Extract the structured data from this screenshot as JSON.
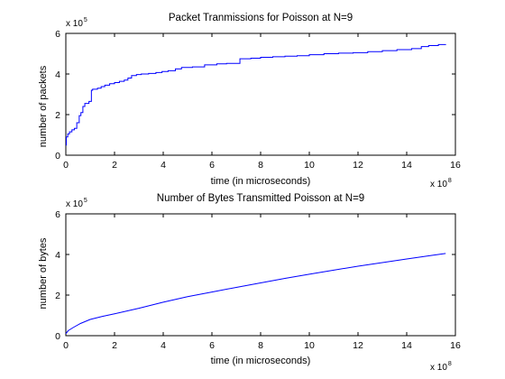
{
  "colors": {
    "line": "#0000ff",
    "axes": "#000000",
    "background": "#ffffff"
  },
  "chart_data": [
    {
      "type": "line",
      "title": "Packet Tranmissions for Poisson at N=9",
      "xlabel": "time (in microseconds)",
      "ylabel": "number of packets",
      "x_exponent": {
        "base": "x 10",
        "power": "8"
      },
      "y_exponent": {
        "base": "x 10",
        "power": "5"
      },
      "xlim": [
        0,
        16
      ],
      "ylim": [
        0,
        6
      ],
      "x_ticks": [
        "0",
        "2",
        "4",
        "6",
        "8",
        "10",
        "12",
        "14",
        "16"
      ],
      "y_ticks": [
        "0",
        "2",
        "4",
        "6"
      ],
      "grid": false,
      "step": true,
      "series": [
        {
          "x": [
            0,
            0.02,
            0.08,
            0.15,
            0.25,
            0.35,
            0.45,
            0.55,
            0.62,
            0.7,
            0.78,
            0.85,
            0.95,
            1.05,
            1.1,
            1.3,
            1.45,
            1.6,
            1.8,
            2.0,
            2.2,
            2.4,
            2.55,
            2.7,
            2.9,
            3.1,
            3.4,
            3.7,
            3.95,
            4.2,
            4.5,
            4.75,
            5.2,
            5.7,
            6.2,
            6.6,
            7.15,
            7.6,
            8.0,
            8.5,
            9.0,
            9.5,
            10.0,
            10.6,
            11.2,
            11.8,
            12.4,
            13.0,
            13.6,
            14.2,
            14.6,
            14.9,
            15.3,
            15.6
          ],
          "y": [
            0.5,
            0.9,
            1.05,
            1.15,
            1.25,
            1.32,
            1.6,
            1.95,
            2.1,
            2.4,
            2.55,
            2.55,
            2.65,
            3.2,
            3.25,
            3.3,
            3.38,
            3.45,
            3.52,
            3.58,
            3.64,
            3.7,
            3.8,
            3.92,
            3.97,
            4.0,
            4.03,
            4.07,
            4.12,
            4.16,
            4.25,
            4.32,
            4.35,
            4.45,
            4.5,
            4.52,
            4.75,
            4.78,
            4.82,
            4.85,
            4.88,
            4.9,
            4.95,
            5.0,
            5.03,
            5.05,
            5.1,
            5.15,
            5.2,
            5.25,
            5.35,
            5.4,
            5.45,
            5.46
          ]
        }
      ]
    },
    {
      "type": "line",
      "title": "Number of Bytes Transmitted Poisson at N=9",
      "xlabel": "time (in microseconds)",
      "ylabel": "number of bytes",
      "x_exponent": {
        "base": "x 10",
        "power": "8"
      },
      "y_exponent": {
        "base": "x 10",
        "power": "5"
      },
      "xlim": [
        0,
        16
      ],
      "ylim": [
        0,
        6
      ],
      "x_ticks": [
        "0",
        "2",
        "4",
        "6",
        "8",
        "10",
        "12",
        "14",
        "16"
      ],
      "y_ticks": [
        "0",
        "2",
        "4",
        "6"
      ],
      "grid": false,
      "step": false,
      "series": [
        {
          "x": [
            0,
            0.1,
            0.3,
            0.6,
            1.0,
            1.5,
            2.0,
            3.0,
            4.0,
            5.0,
            6.0,
            7.0,
            8.0,
            9.0,
            10.0,
            11.0,
            12.0,
            13.0,
            14.0,
            15.0,
            15.6
          ],
          "y": [
            0.1,
            0.25,
            0.4,
            0.6,
            0.8,
            0.95,
            1.08,
            1.35,
            1.65,
            1.92,
            2.15,
            2.38,
            2.6,
            2.82,
            3.03,
            3.23,
            3.42,
            3.6,
            3.78,
            3.95,
            4.05
          ]
        }
      ]
    }
  ]
}
